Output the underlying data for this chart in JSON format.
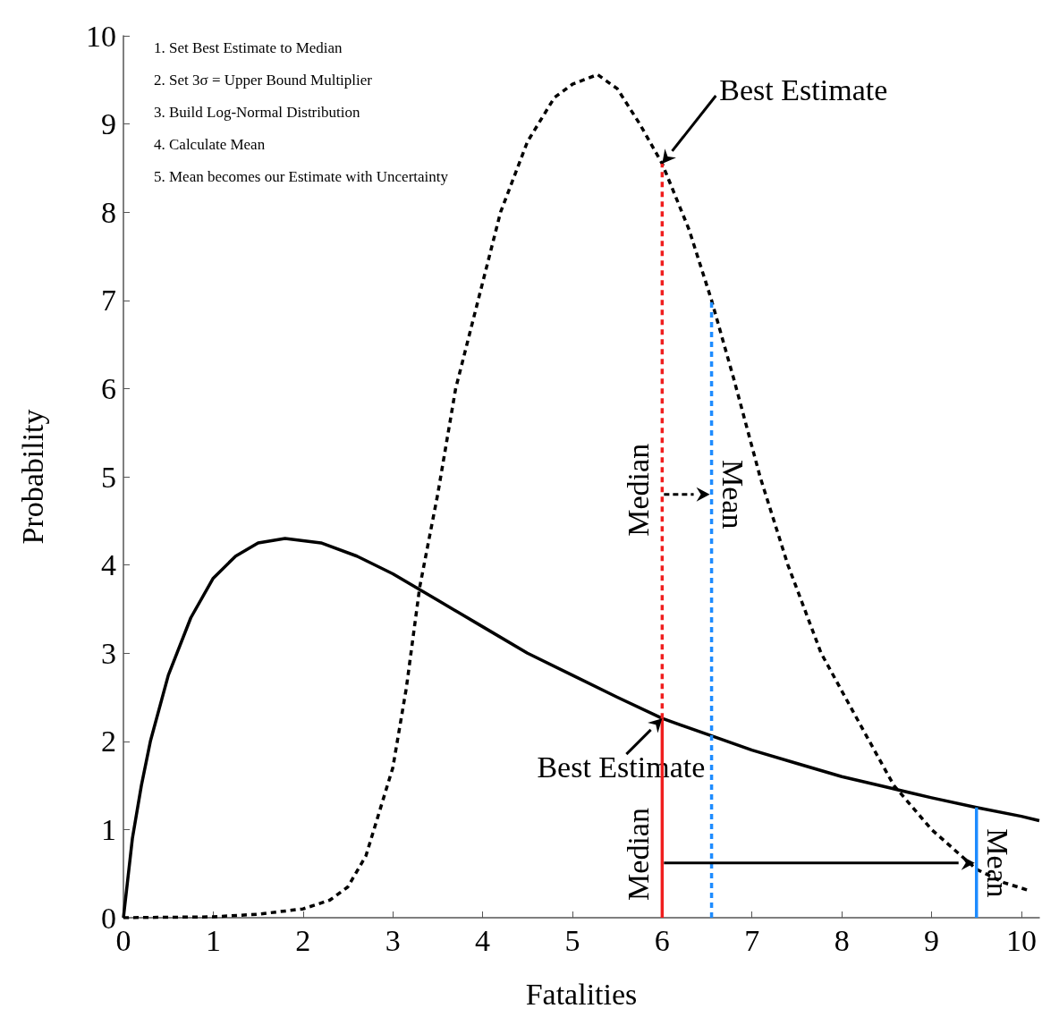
{
  "chart_data": {
    "type": "line",
    "xlabel": "Fatalities",
    "ylabel": "Probability",
    "xlim": [
      0,
      10.2
    ],
    "xticks": [
      0,
      1,
      2,
      3,
      4,
      5,
      6,
      7,
      8,
      9,
      10
    ],
    "ylim": [
      0,
      10
    ],
    "yticks": [
      0,
      1,
      2,
      3,
      4,
      5,
      6,
      7,
      8,
      9,
      10
    ],
    "grid": false,
    "marker": "none",
    "series": [
      {
        "color": "#000000",
        "line_style": "solid",
        "x": [
          0,
          0.1,
          0.2,
          0.3,
          0.5,
          0.75,
          1.0,
          1.25,
          1.5,
          1.8,
          2.2,
          2.6,
          3,
          3.5,
          4,
          4.5,
          5,
          5.5,
          6,
          6.5,
          7,
          7.5,
          8,
          8.5,
          9,
          9.5,
          10,
          10.2
        ],
        "values": [
          0,
          0.9,
          1.5,
          2.0,
          2.75,
          3.4,
          3.85,
          4.1,
          4.25,
          4.3,
          4.25,
          4.1,
          3.9,
          3.6,
          3.3,
          3.0,
          2.75,
          2.5,
          2.26,
          2.08,
          1.9,
          1.75,
          1.6,
          1.48,
          1.36,
          1.25,
          1.15,
          1.1
        ]
      },
      {
        "color": "#000000",
        "line_style": "dashed",
        "x": [
          0,
          1,
          1.5,
          2,
          2.3,
          2.5,
          2.7,
          2.85,
          3,
          3.15,
          3.3,
          3.5,
          3.7,
          4.0,
          4.2,
          4.5,
          4.8,
          5.0,
          5.28,
          5.5,
          5.75,
          6,
          6.3,
          6.55,
          6.8,
          7.09,
          7.4,
          7.77,
          8.2,
          8.58,
          9,
          9.5,
          9.8,
          10.08
        ],
        "values": [
          0,
          0.01,
          0.04,
          0.1,
          0.2,
          0.35,
          0.7,
          1.2,
          1.7,
          2.6,
          3.75,
          4.8,
          6.0,
          7.2,
          8.0,
          8.8,
          9.3,
          9.45,
          9.56,
          9.4,
          9.0,
          8.55,
          7.8,
          7.0,
          6.1,
          5.0,
          4.0,
          3.0,
          2.2,
          1.5,
          1.0,
          0.55,
          0.4,
          0.31
        ]
      },
      {
        "color": "#f01e1e",
        "line_style": "solid",
        "x": [
          6,
          6
        ],
        "values": [
          0,
          2.26
        ]
      },
      {
        "color": "#f01e1e",
        "line_style": "dashed",
        "x": [
          6,
          6
        ],
        "values": [
          2.26,
          8.55
        ]
      },
      {
        "color": "#1e8cff",
        "line_style": "dashed",
        "x": [
          6.55,
          6.55
        ],
        "values": [
          0,
          7.0
        ]
      },
      {
        "color": "#1e8cff",
        "line_style": "solid",
        "x": [
          9.5,
          9.5
        ],
        "values": [
          0,
          1.25
        ]
      }
    ],
    "annotations": [
      "1.  Set Best Estimate to Median",
      "2.  Set 3σ = Upper Bound Multiplier",
      "3.  Build Log-Normal Distribution",
      "4.  Calculate Mean",
      "5.  Mean becomes our Estimate with Uncertainty",
      {
        "text": "Best Estimate",
        "x": 6,
        "y": 8.55
      },
      {
        "text": "Best Estimate",
        "x": 6,
        "y": 2.26
      },
      {
        "text": "Median",
        "x": 6,
        "y": 4.85
      },
      {
        "text": "Mean",
        "x": 6.55,
        "y": 4.8
      },
      {
        "text": "Median",
        "x": 6,
        "y": 0.72
      },
      {
        "text": "Mean",
        "x": 9.5,
        "y": 0.62
      }
    ]
  }
}
